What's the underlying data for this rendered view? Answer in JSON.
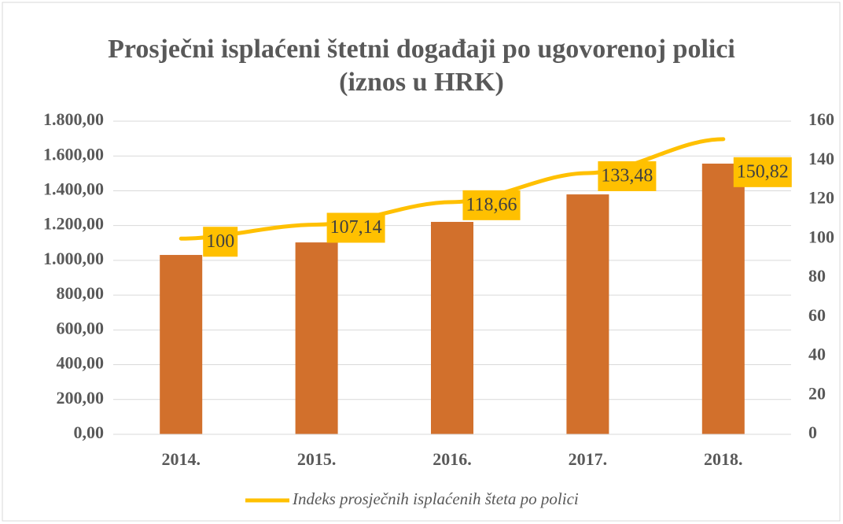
{
  "chart_data": {
    "type": "bar+line",
    "title": "Prosječni isplaćeni štetni događaji po ugovorenoj polici (iznos u HRK)",
    "categories": [
      "2014.",
      "2015.",
      "2016.",
      "2017.",
      "2018."
    ],
    "series": [
      {
        "type": "bar",
        "color": "#d2702c",
        "values": [
          1031,
          1103,
          1221,
          1379,
          1556
        ]
      },
      {
        "type": "line",
        "name": "Indeks prosječnih isplaćenih šteta po polici",
        "color": "#ffc000",
        "axis": "y2",
        "values": [
          100,
          107.14,
          118.66,
          133.48,
          150.82
        ],
        "value_labels": [
          "100",
          "107,14",
          "118,66",
          "133,48",
          "150,82"
        ]
      }
    ],
    "ylim": [
      0,
      1800
    ],
    "yticks": [
      {
        "value": 0,
        "label": "0,00"
      },
      {
        "value": 200,
        "label": "200,00"
      },
      {
        "value": 400,
        "label": "400,00"
      },
      {
        "value": 600,
        "label": "600,00"
      },
      {
        "value": 800,
        "label": "800,00"
      },
      {
        "value": 1000,
        "label": "1.000,00"
      },
      {
        "value": 1200,
        "label": "1.200,00"
      },
      {
        "value": 1400,
        "label": "1.400,00"
      },
      {
        "value": 1600,
        "label": "1.600,00"
      },
      {
        "value": 1800,
        "label": "1.800,00"
      }
    ],
    "y2lim": [
      0,
      160
    ],
    "y2ticks": [
      0,
      20,
      40,
      60,
      80,
      100,
      120,
      140,
      160
    ],
    "grid": true,
    "legend": "bottom"
  }
}
